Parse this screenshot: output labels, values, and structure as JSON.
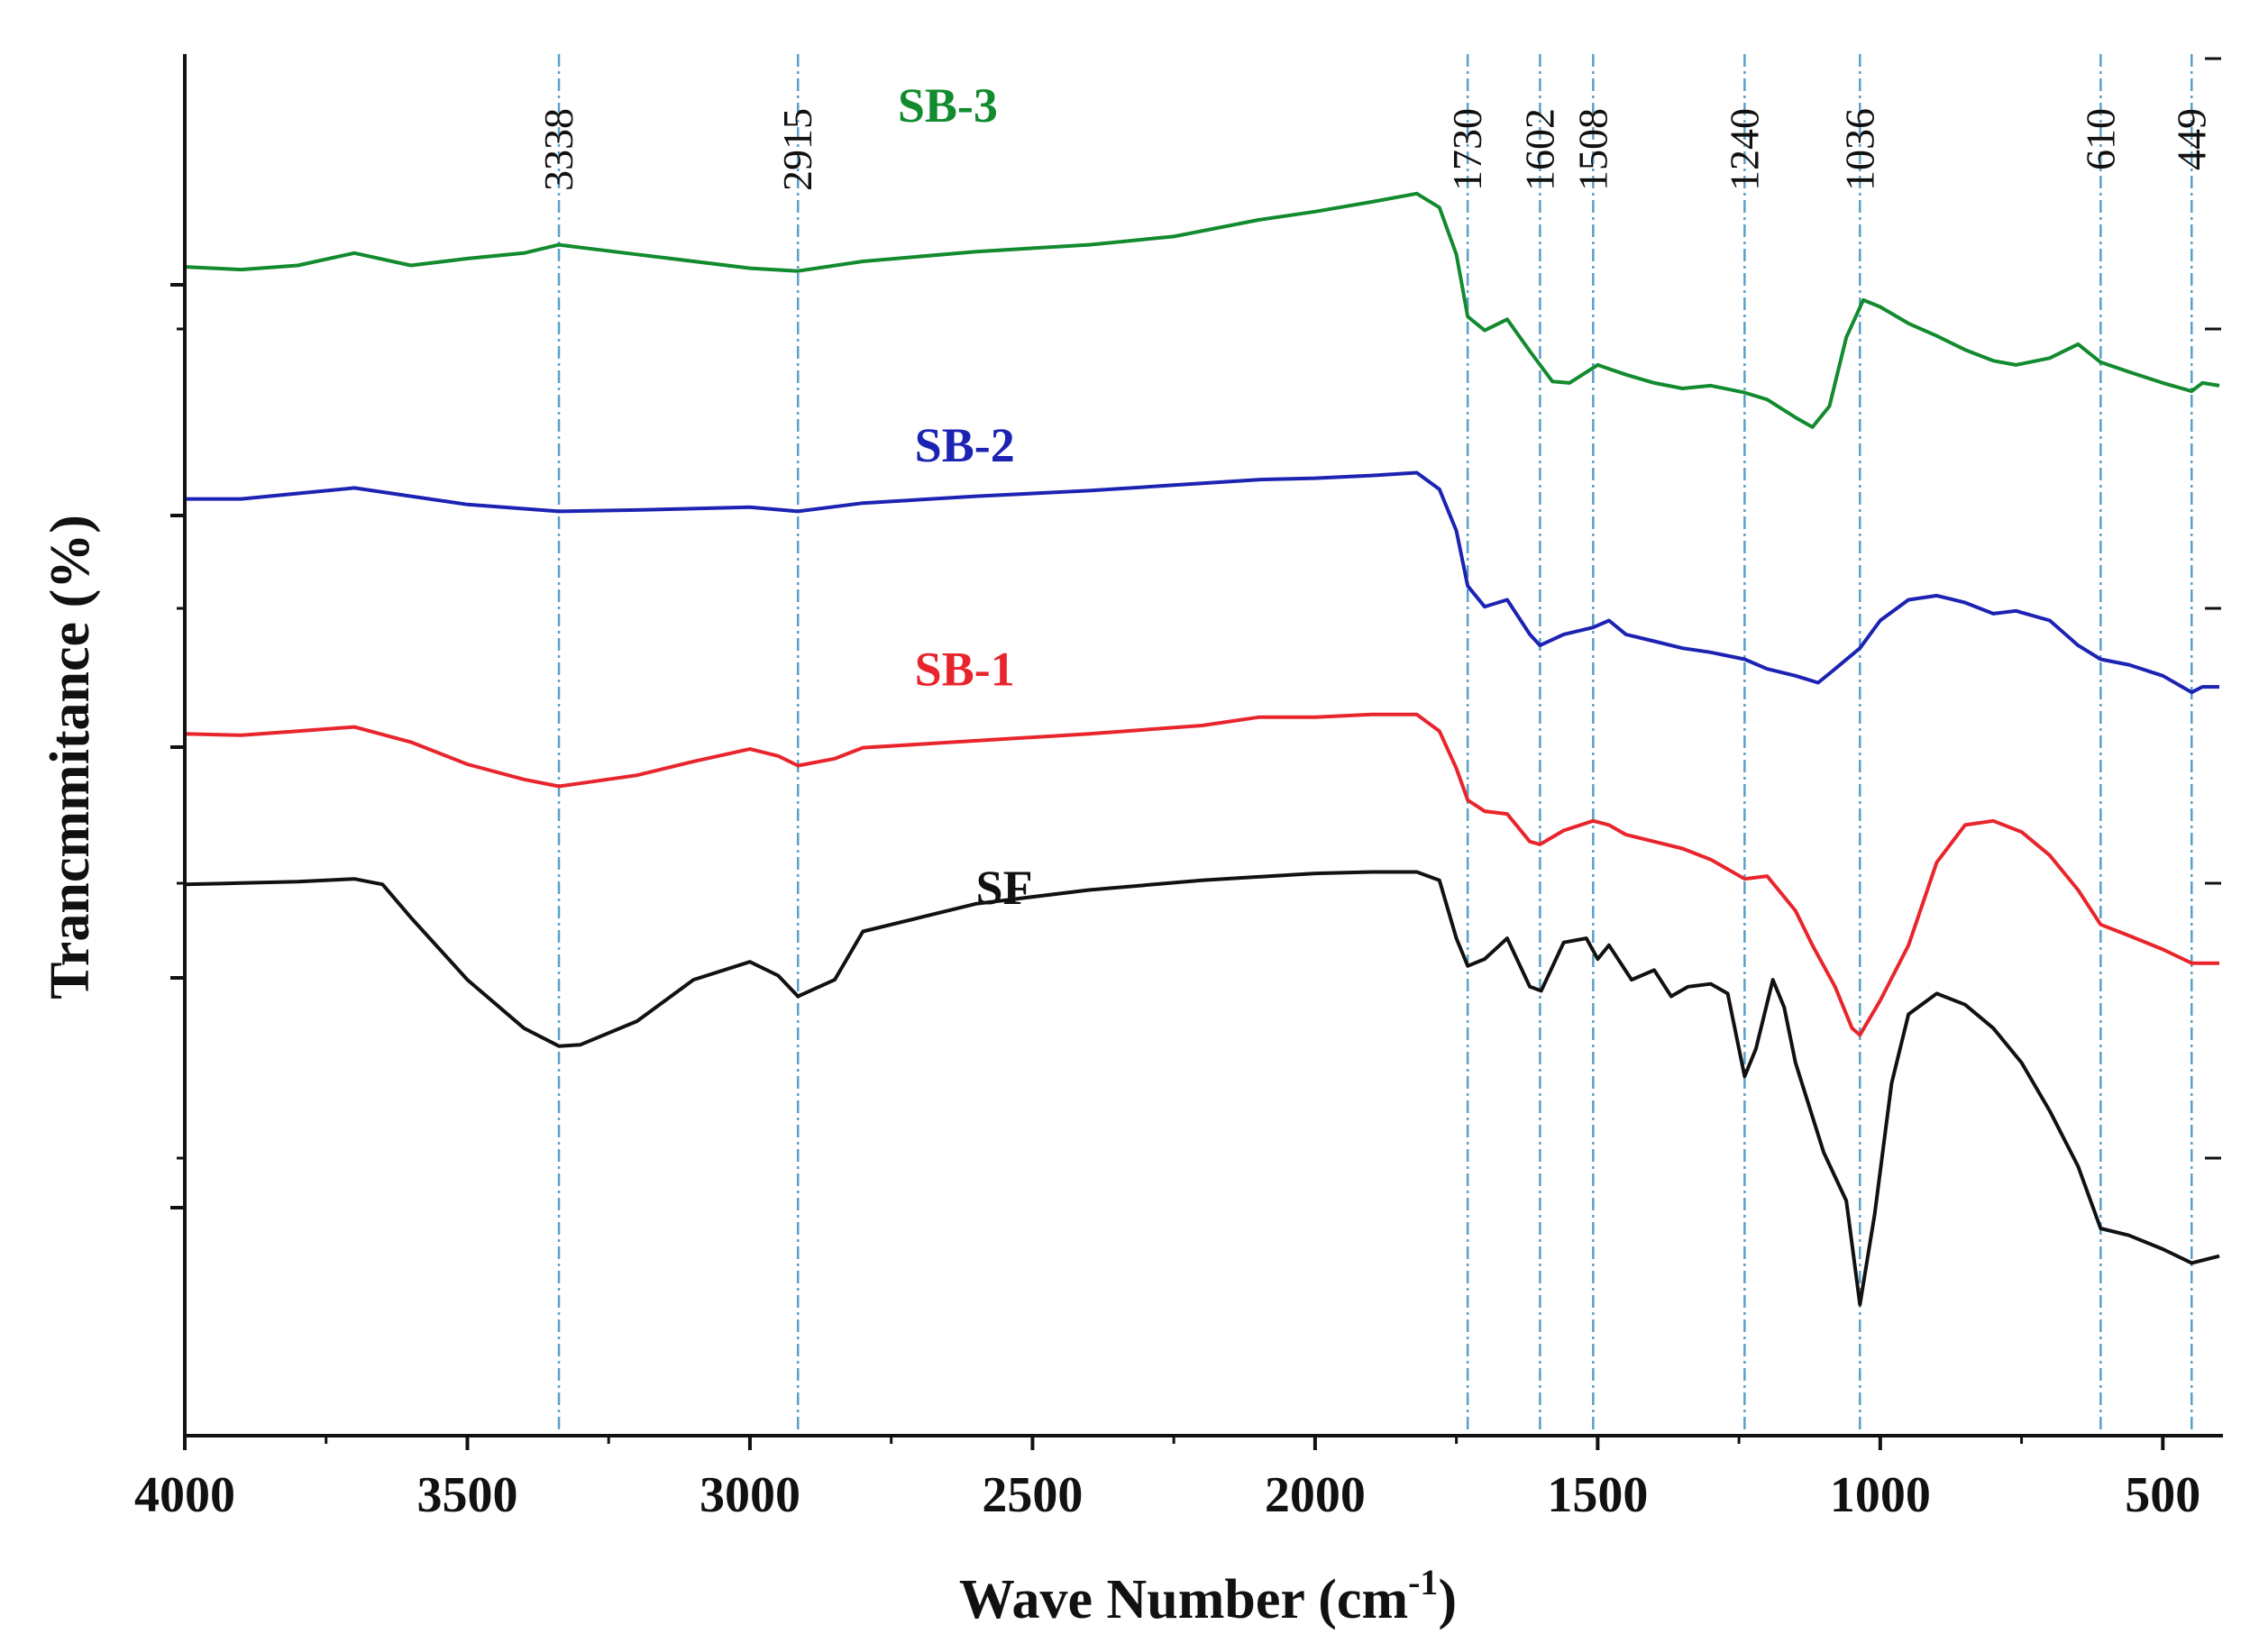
{
  "chart_data": {
    "type": "line",
    "title": "",
    "xlabel": "Wave Number (cm",
    "xlabel_sup": "-1",
    "xlabel_close": ")",
    "ylabel": "Trancmmitance (%)",
    "xlim": [
      4000,
      400
    ],
    "ylim": [
      0,
      10
    ],
    "y_ticks_shown": false,
    "x_ticks": [
      {
        "value": 4000,
        "label": "4000"
      },
      {
        "value": 3500,
        "label": "3500"
      },
      {
        "value": 3000,
        "label": "3000"
      },
      {
        "value": 2500,
        "label": "2500"
      },
      {
        "value": 2000,
        "label": "2000"
      },
      {
        "value": 1500,
        "label": "1500"
      },
      {
        "value": 1000,
        "label": "1000"
      },
      {
        "value": 500,
        "label": "500"
      }
    ],
    "reference_lines": [
      {
        "value": 3338,
        "label": "3338"
      },
      {
        "value": 2915,
        "label": "2915"
      },
      {
        "value": 1730,
        "label": "1730"
      },
      {
        "value": 1602,
        "label": "1602"
      },
      {
        "value": 1508,
        "label": "1508"
      },
      {
        "value": 1240,
        "label": "1240"
      },
      {
        "value": 1036,
        "label": "1036"
      },
      {
        "value": 610,
        "label": "610"
      },
      {
        "value": 449,
        "label": "449"
      }
    ],
    "series": [
      {
        "name": "SB-3",
        "color": "#128a2e",
        "points": [
          [
            4000,
            8.46
          ],
          [
            3900,
            8.44
          ],
          [
            3800,
            8.47
          ],
          [
            3700,
            8.56
          ],
          [
            3600,
            8.47
          ],
          [
            3500,
            8.52
          ],
          [
            3400,
            8.56
          ],
          [
            3338,
            8.62
          ],
          [
            3200,
            8.55
          ],
          [
            3000,
            8.45
          ],
          [
            2915,
            8.43
          ],
          [
            2800,
            8.5
          ],
          [
            2600,
            8.57
          ],
          [
            2400,
            8.62
          ],
          [
            2250,
            8.68
          ],
          [
            2100,
            8.8
          ],
          [
            2000,
            8.86
          ],
          [
            1900,
            8.93
          ],
          [
            1820,
            8.99
          ],
          [
            1780,
            8.89
          ],
          [
            1750,
            8.55
          ],
          [
            1730,
            8.1
          ],
          [
            1700,
            8.0
          ],
          [
            1660,
            8.08
          ],
          [
            1620,
            7.85
          ],
          [
            1580,
            7.63
          ],
          [
            1550,
            7.62
          ],
          [
            1500,
            7.75
          ],
          [
            1450,
            7.68
          ],
          [
            1400,
            7.62
          ],
          [
            1350,
            7.58
          ],
          [
            1300,
            7.6
          ],
          [
            1240,
            7.55
          ],
          [
            1200,
            7.5
          ],
          [
            1150,
            7.37
          ],
          [
            1120,
            7.3
          ],
          [
            1090,
            7.45
          ],
          [
            1060,
            7.95
          ],
          [
            1030,
            8.22
          ],
          [
            1000,
            8.17
          ],
          [
            950,
            8.05
          ],
          [
            900,
            7.96
          ],
          [
            850,
            7.86
          ],
          [
            800,
            7.78
          ],
          [
            760,
            7.75
          ],
          [
            700,
            7.8
          ],
          [
            650,
            7.9
          ],
          [
            610,
            7.77
          ],
          [
            560,
            7.7
          ],
          [
            500,
            7.62
          ],
          [
            449,
            7.56
          ],
          [
            430,
            7.62
          ],
          [
            400,
            7.6
          ]
        ]
      },
      {
        "name": "SB-2",
        "color": "#1c23b3",
        "points": [
          [
            4000,
            6.78
          ],
          [
            3900,
            6.78
          ],
          [
            3800,
            6.82
          ],
          [
            3700,
            6.86
          ],
          [
            3600,
            6.8
          ],
          [
            3500,
            6.74
          ],
          [
            3338,
            6.69
          ],
          [
            3200,
            6.7
          ],
          [
            3000,
            6.72
          ],
          [
            2915,
            6.69
          ],
          [
            2800,
            6.75
          ],
          [
            2600,
            6.8
          ],
          [
            2400,
            6.84
          ],
          [
            2250,
            6.88
          ],
          [
            2100,
            6.92
          ],
          [
            2000,
            6.93
          ],
          [
            1900,
            6.95
          ],
          [
            1820,
            6.97
          ],
          [
            1780,
            6.85
          ],
          [
            1750,
            6.55
          ],
          [
            1730,
            6.15
          ],
          [
            1700,
            6.0
          ],
          [
            1660,
            6.05
          ],
          [
            1620,
            5.8
          ],
          [
            1602,
            5.72
          ],
          [
            1560,
            5.8
          ],
          [
            1508,
            5.85
          ],
          [
            1480,
            5.9
          ],
          [
            1450,
            5.8
          ],
          [
            1400,
            5.75
          ],
          [
            1350,
            5.7
          ],
          [
            1300,
            5.67
          ],
          [
            1240,
            5.62
          ],
          [
            1200,
            5.55
          ],
          [
            1150,
            5.5
          ],
          [
            1110,
            5.45
          ],
          [
            1080,
            5.55
          ],
          [
            1036,
            5.7
          ],
          [
            1000,
            5.9
          ],
          [
            950,
            6.05
          ],
          [
            900,
            6.08
          ],
          [
            850,
            6.03
          ],
          [
            800,
            5.95
          ],
          [
            760,
            5.97
          ],
          [
            700,
            5.9
          ],
          [
            650,
            5.72
          ],
          [
            610,
            5.62
          ],
          [
            560,
            5.58
          ],
          [
            500,
            5.5
          ],
          [
            449,
            5.38
          ],
          [
            430,
            5.42
          ],
          [
            400,
            5.42
          ]
        ]
      },
      {
        "name": "SB-1",
        "color": "#e8252c",
        "points": [
          [
            4000,
            5.08
          ],
          [
            3900,
            5.07
          ],
          [
            3800,
            5.1
          ],
          [
            3700,
            5.13
          ],
          [
            3600,
            5.02
          ],
          [
            3500,
            4.86
          ],
          [
            3400,
            4.75
          ],
          [
            3338,
            4.7
          ],
          [
            3200,
            4.78
          ],
          [
            3100,
            4.88
          ],
          [
            3000,
            4.97
          ],
          [
            2950,
            4.92
          ],
          [
            2915,
            4.85
          ],
          [
            2850,
            4.9
          ],
          [
            2800,
            4.98
          ],
          [
            2600,
            5.03
          ],
          [
            2400,
            5.08
          ],
          [
            2200,
            5.14
          ],
          [
            2100,
            5.2
          ],
          [
            2000,
            5.2
          ],
          [
            1900,
            5.22
          ],
          [
            1820,
            5.22
          ],
          [
            1780,
            5.1
          ],
          [
            1750,
            4.83
          ],
          [
            1730,
            4.6
          ],
          [
            1700,
            4.52
          ],
          [
            1660,
            4.5
          ],
          [
            1620,
            4.3
          ],
          [
            1602,
            4.28
          ],
          [
            1560,
            4.38
          ],
          [
            1508,
            4.45
          ],
          [
            1480,
            4.42
          ],
          [
            1450,
            4.35
          ],
          [
            1400,
            4.3
          ],
          [
            1350,
            4.25
          ],
          [
            1300,
            4.17
          ],
          [
            1240,
            4.03
          ],
          [
            1200,
            4.05
          ],
          [
            1150,
            3.8
          ],
          [
            1120,
            3.55
          ],
          [
            1080,
            3.25
          ],
          [
            1050,
            2.95
          ],
          [
            1036,
            2.9
          ],
          [
            1000,
            3.15
          ],
          [
            950,
            3.55
          ],
          [
            900,
            4.15
          ],
          [
            850,
            4.42
          ],
          [
            800,
            4.45
          ],
          [
            750,
            4.37
          ],
          [
            700,
            4.2
          ],
          [
            650,
            3.95
          ],
          [
            610,
            3.7
          ],
          [
            560,
            3.62
          ],
          [
            500,
            3.52
          ],
          [
            449,
            3.42
          ],
          [
            400,
            3.42
          ]
        ]
      },
      {
        "name": "SF",
        "color": "#111111",
        "points": [
          [
            4000,
            3.99
          ],
          [
            3900,
            4.0
          ],
          [
            3800,
            4.01
          ],
          [
            3700,
            4.03
          ],
          [
            3650,
            3.99
          ],
          [
            3600,
            3.75
          ],
          [
            3500,
            3.3
          ],
          [
            3400,
            2.95
          ],
          [
            3338,
            2.82
          ],
          [
            3300,
            2.83
          ],
          [
            3200,
            3.0
          ],
          [
            3100,
            3.3
          ],
          [
            3000,
            3.43
          ],
          [
            2950,
            3.33
          ],
          [
            2915,
            3.18
          ],
          [
            2850,
            3.3
          ],
          [
            2800,
            3.65
          ],
          [
            2600,
            3.85
          ],
          [
            2400,
            3.95
          ],
          [
            2200,
            4.02
          ],
          [
            2000,
            4.07
          ],
          [
            1900,
            4.08
          ],
          [
            1820,
            4.08
          ],
          [
            1780,
            4.02
          ],
          [
            1750,
            3.6
          ],
          [
            1730,
            3.4
          ],
          [
            1700,
            3.45
          ],
          [
            1660,
            3.6
          ],
          [
            1620,
            3.25
          ],
          [
            1600,
            3.22
          ],
          [
            1560,
            3.57
          ],
          [
            1520,
            3.6
          ],
          [
            1500,
            3.45
          ],
          [
            1480,
            3.55
          ],
          [
            1440,
            3.3
          ],
          [
            1400,
            3.37
          ],
          [
            1370,
            3.18
          ],
          [
            1340,
            3.25
          ],
          [
            1300,
            3.27
          ],
          [
            1270,
            3.2
          ],
          [
            1240,
            2.6
          ],
          [
            1220,
            2.8
          ],
          [
            1190,
            3.3
          ],
          [
            1170,
            3.1
          ],
          [
            1150,
            2.7
          ],
          [
            1100,
            2.05
          ],
          [
            1060,
            1.7
          ],
          [
            1036,
            0.95
          ],
          [
            1010,
            1.6
          ],
          [
            980,
            2.55
          ],
          [
            950,
            3.05
          ],
          [
            900,
            3.2
          ],
          [
            850,
            3.12
          ],
          [
            800,
            2.95
          ],
          [
            750,
            2.7
          ],
          [
            700,
            2.35
          ],
          [
            650,
            1.95
          ],
          [
            610,
            1.5
          ],
          [
            560,
            1.45
          ],
          [
            500,
            1.35
          ],
          [
            449,
            1.25
          ],
          [
            400,
            1.3
          ]
        ]
      }
    ],
    "series_labels": [
      {
        "text": "SB-3",
        "x": 2650,
        "y": 9.51
      },
      {
        "text": "SB-2",
        "x": 2620,
        "y": 7.05
      },
      {
        "text": "SB-1",
        "x": 2620,
        "y": 5.43
      },
      {
        "text": "SF",
        "x": 2550,
        "y": 3.85
      }
    ]
  }
}
